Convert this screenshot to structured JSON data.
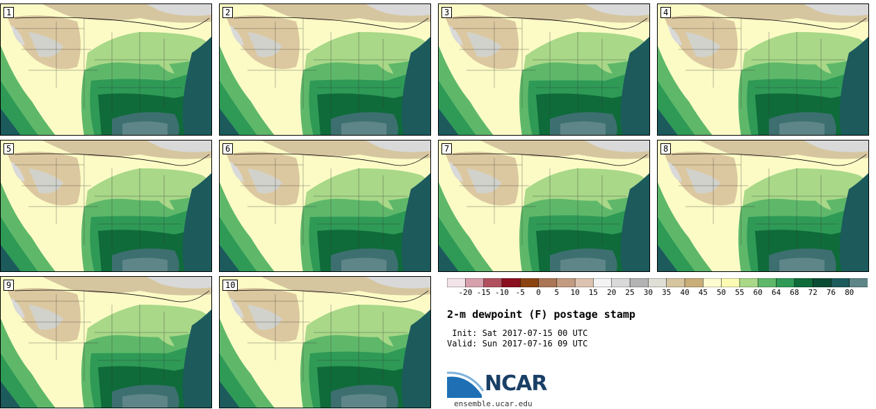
{
  "panels": [
    {
      "number": "1"
    },
    {
      "number": "2"
    },
    {
      "number": "3"
    },
    {
      "number": "4"
    },
    {
      "number": "5"
    },
    {
      "number": "6"
    },
    {
      "number": "7"
    },
    {
      "number": "8"
    },
    {
      "number": "9"
    },
    {
      "number": "10"
    }
  ],
  "colorbar": {
    "colors": [
      "#f2e4e9",
      "#d7a0ad",
      "#b0505e",
      "#8a1020",
      "#8a4412",
      "#aa7655",
      "#c39b81",
      "#dcc3b0",
      "#f3f3f3",
      "#d9d9d9",
      "#b3b3b3",
      "#dfdfd5",
      "#d6c6a0",
      "#c9ae7a",
      "#fdfcd0",
      "#fcfbb3",
      "#a8d888",
      "#5fb86a",
      "#2e9a56",
      "#0f6b3a",
      "#0a4c33",
      "#1c5a5c",
      "#5e8587"
    ],
    "labels": [
      "-20",
      "-15",
      "-10",
      "-5",
      "0",
      "5",
      "10",
      "15",
      "20",
      "25",
      "30",
      "35",
      "40",
      "45",
      "50",
      "55",
      "60",
      "64",
      "68",
      "72",
      "76",
      "80"
    ]
  },
  "title": "2-m dewpoint (F) postage stamp",
  "init": " Init: Sat 2017-07-15 00 UTC",
  "valid": "Valid: Sun 2017-07-16 09 UTC",
  "logo_text": "NCAR",
  "logo_url": "ensemble.ucar.edu"
}
